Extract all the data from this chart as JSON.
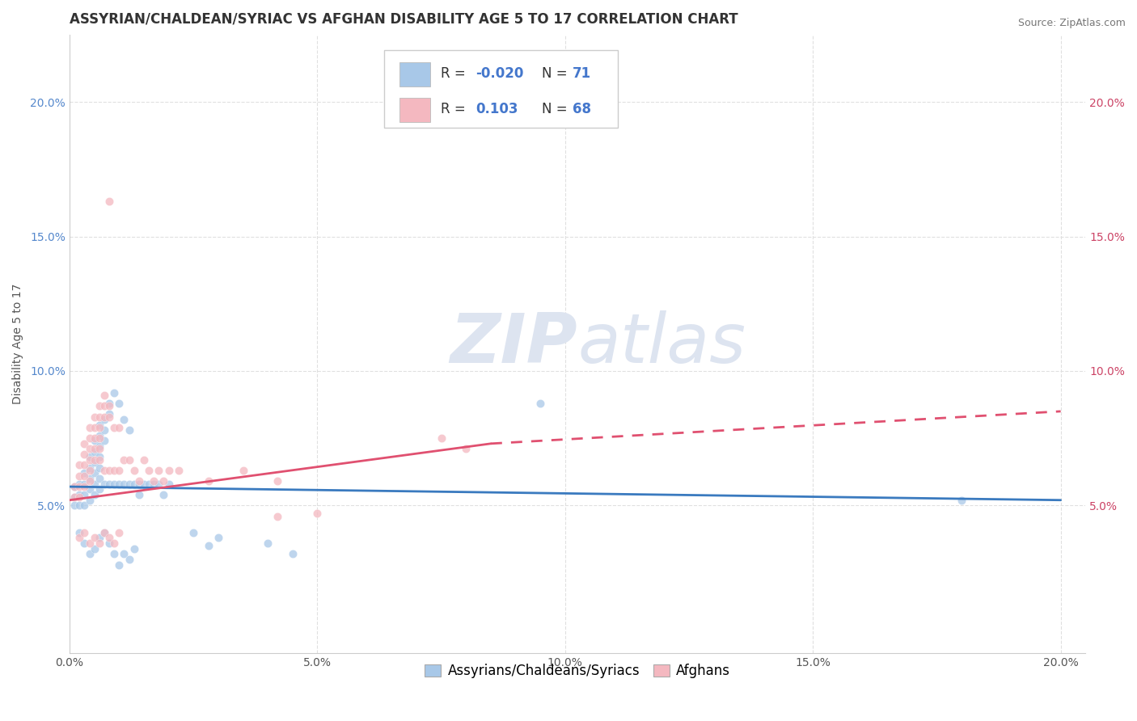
{
  "title": "ASSYRIAN/CHALDEAN/SYRIAC VS AFGHAN DISABILITY AGE 5 TO 17 CORRELATION CHART",
  "source": "Source: ZipAtlas.com",
  "ylabel": "Disability Age 5 to 17",
  "xlim": [
    0.0,
    0.205
  ],
  "ylim": [
    -0.005,
    0.225
  ],
  "xticks": [
    0.0,
    0.05,
    0.1,
    0.15,
    0.2
  ],
  "yticks": [
    0.05,
    0.1,
    0.15,
    0.2
  ],
  "blue_R": "-0.020",
  "blue_N": "71",
  "pink_R": "0.103",
  "pink_N": "68",
  "blue_color": "#a8c8e8",
  "pink_color": "#f4b8c0",
  "blue_line_color": "#3a7abf",
  "pink_line_color": "#e05070",
  "left_tick_color": "#5588cc",
  "right_tick_color": "#cc4466",
  "background_color": "#ffffff",
  "watermark_color": "#dde4f0",
  "grid_color": "#e0e0e0",
  "title_color": "#333333",
  "title_fontsize": 12,
  "axis_label_fontsize": 10,
  "tick_fontsize": 10,
  "legend_fontsize": 12,
  "source_fontsize": 9,
  "scatter_size": 55
}
